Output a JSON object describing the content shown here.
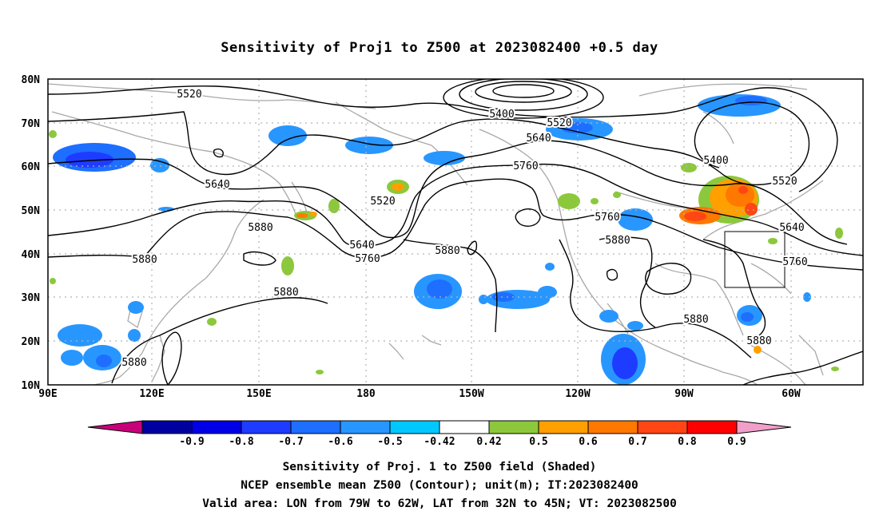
{
  "title": "Sensitivity of Proj1 to Z500 at 2023082400 +0.5 day",
  "lat_labels": [
    "80N",
    "70N",
    "60N",
    "50N",
    "40N",
    "30N",
    "20N",
    "10N"
  ],
  "lon_labels": [
    "90E",
    "120E",
    "150E",
    "180",
    "150W",
    "120W",
    "90W",
    "60W"
  ],
  "contour_labels": [
    "5520",
    "5400",
    "5520",
    "5640",
    "5760",
    "5400",
    "5520",
    "5640",
    "5520",
    "5640",
    "5880",
    "5640",
    "5760",
    "5880",
    "5760",
    "5880",
    "5760",
    "5880",
    "5880",
    "5880",
    "5880"
  ],
  "colorbar": {
    "labels": [
      "-0.9",
      "-0.8",
      "-0.7",
      "-0.6",
      "-0.5",
      "-0.42",
      "0.42",
      "0.5",
      "0.6",
      "0.7",
      "0.8",
      "0.9"
    ],
    "colors": [
      "#c8007a",
      "#0000a0",
      "#0000e6",
      "#1e3cff",
      "#1e6eff",
      "#2896ff",
      "#00c8ff",
      "#ffffff",
      "#8cc83c",
      "#ffa000",
      "#ff7800",
      "#ff4614",
      "#ff0000",
      "#f0a0c8"
    ]
  },
  "caption": [
    "Sensitivity of Proj. 1 to Z500 field (Shaded)",
    "NCEP ensemble mean Z500 (Contour); unit(m); IT:2023082400",
    "Valid area: LON from 79W to 62W, LAT from 32N to 45N; VT: 2023082500"
  ],
  "valid_area": {
    "lon": [
      -79,
      -62
    ],
    "lat": [
      32,
      45
    ]
  }
}
